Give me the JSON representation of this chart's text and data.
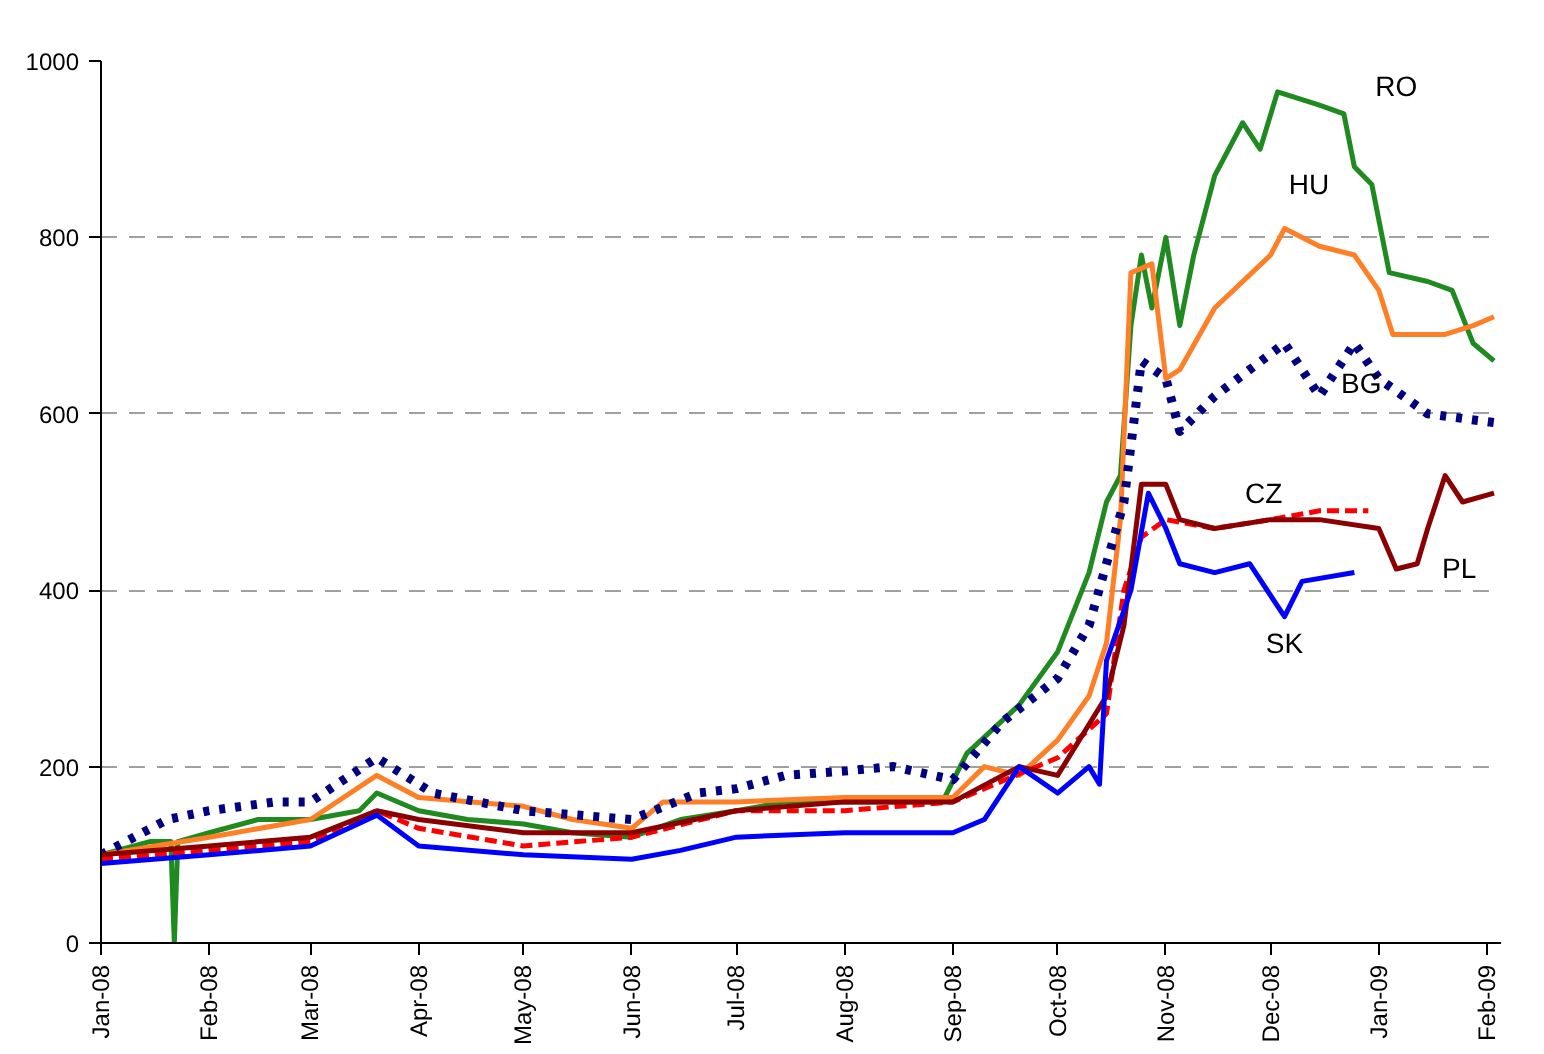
{
  "chart_data": {
    "type": "line",
    "xlim": [
      "2008-01-01",
      "2009-02-05"
    ],
    "xticks": [
      {
        "value": "2008-01-01",
        "label": "Jan-08"
      },
      {
        "value": "2008-02-01",
        "label": "Feb-08"
      },
      {
        "value": "2008-03-01",
        "label": "Mar-08"
      },
      {
        "value": "2008-04-01",
        "label": "Apr-08"
      },
      {
        "value": "2008-05-01",
        "label": "May-08"
      },
      {
        "value": "2008-06-01",
        "label": "Jun-08"
      },
      {
        "value": "2008-07-01",
        "label": "Jul-08"
      },
      {
        "value": "2008-08-01",
        "label": "Aug-08"
      },
      {
        "value": "2008-09-01",
        "label": "Sep-08"
      },
      {
        "value": "2008-10-01",
        "label": "Oct-08"
      },
      {
        "value": "2008-11-01",
        "label": "Nov-08"
      },
      {
        "value": "2008-12-01",
        "label": "Dec-08"
      },
      {
        "value": "2009-01-01",
        "label": "Jan-09"
      },
      {
        "value": "2009-02-01",
        "label": "Feb-09"
      }
    ],
    "ylim": [
      0,
      1000
    ],
    "yticks": [
      0,
      200,
      400,
      600,
      800,
      1000
    ],
    "grid": "y",
    "legend": false,
    "series": [
      {
        "name": "RO",
        "color": "#1f8a1f",
        "line_style": "solid",
        "x": [
          "2008-01-01",
          "2008-01-15",
          "2008-01-21",
          "2008-01-22",
          "2008-01-23",
          "2008-02-01",
          "2008-02-15",
          "2008-03-01",
          "2008-03-15",
          "2008-03-20",
          "2008-04-01",
          "2008-04-15",
          "2008-05-01",
          "2008-05-15",
          "2008-06-01",
          "2008-06-15",
          "2008-07-01",
          "2008-07-15",
          "2008-08-01",
          "2008-08-15",
          "2008-08-29",
          "2008-09-05",
          "2008-09-20",
          "2008-10-01",
          "2008-10-10",
          "2008-10-15",
          "2008-10-19",
          "2008-10-22",
          "2008-10-25",
          "2008-10-28",
          "2008-11-01",
          "2008-11-05",
          "2008-11-09",
          "2008-11-15",
          "2008-11-23",
          "2008-11-28",
          "2008-12-03",
          "2008-12-15",
          "2008-12-22",
          "2008-12-25",
          "2008-12-30",
          "2009-01-04",
          "2009-01-15",
          "2009-01-22",
          "2009-01-28",
          "2009-02-03"
        ],
        "values": [
          100,
          115,
          115,
          0,
          115,
          125,
          140,
          140,
          150,
          170,
          150,
          140,
          135,
          125,
          120,
          140,
          150,
          160,
          160,
          160,
          160,
          215,
          270,
          330,
          420,
          500,
          530,
          700,
          780,
          720,
          800,
          700,
          780,
          870,
          930,
          900,
          965,
          950,
          940,
          880,
          860,
          760,
          750,
          740,
          680,
          660
        ]
      },
      {
        "name": "HU",
        "color": "#ff7f27",
        "line_style": "solid",
        "x": [
          "2008-01-01",
          "2008-02-01",
          "2008-03-01",
          "2008-03-20",
          "2008-04-01",
          "2008-05-01",
          "2008-05-15",
          "2008-06-01",
          "2008-06-10",
          "2008-07-01",
          "2008-08-01",
          "2008-09-01",
          "2008-09-10",
          "2008-09-20",
          "2008-10-01",
          "2008-10-10",
          "2008-10-15",
          "2008-10-19",
          "2008-10-22",
          "2008-10-28",
          "2008-11-01",
          "2008-11-05",
          "2008-11-15",
          "2008-12-01",
          "2008-12-05",
          "2008-12-15",
          "2008-12-25",
          "2009-01-01",
          "2009-01-05",
          "2009-01-20",
          "2009-01-28",
          "2009-02-03"
        ],
        "values": [
          100,
          120,
          140,
          190,
          165,
          155,
          140,
          130,
          160,
          160,
          165,
          165,
          200,
          190,
          230,
          280,
          340,
          480,
          760,
          770,
          640,
          650,
          720,
          780,
          810,
          790,
          780,
          740,
          690,
          690,
          700,
          710
        ]
      },
      {
        "name": "BG",
        "color": "#000080",
        "line_style": "dotted",
        "x": [
          "2008-01-01",
          "2008-01-20",
          "2008-02-01",
          "2008-02-20",
          "2008-03-01",
          "2008-03-20",
          "2008-04-05",
          "2008-05-01",
          "2008-06-01",
          "2008-06-20",
          "2008-07-01",
          "2008-07-15",
          "2008-08-01",
          "2008-08-15",
          "2008-09-01",
          "2008-09-15",
          "2008-10-01",
          "2008-10-10",
          "2008-10-20",
          "2008-10-25",
          "2008-11-01",
          "2008-11-05",
          "2008-11-15",
          "2008-11-25",
          "2008-12-05",
          "2008-12-15",
          "2008-12-25",
          "2009-01-01",
          "2009-01-15",
          "2009-02-03"
        ],
        "values": [
          100,
          140,
          150,
          160,
          160,
          210,
          170,
          150,
          140,
          170,
          175,
          190,
          195,
          200,
          185,
          250,
          300,
          360,
          500,
          660,
          640,
          580,
          620,
          650,
          680,
          620,
          680,
          640,
          600,
          590
        ]
      },
      {
        "name": "CZ",
        "color": "#ff0000",
        "line_style": "dashed",
        "x": [
          "2008-01-01",
          "2008-02-01",
          "2008-03-01",
          "2008-03-20",
          "2008-04-01",
          "2008-05-01",
          "2008-06-01",
          "2008-07-01",
          "2008-08-01",
          "2008-09-01",
          "2008-10-01",
          "2008-10-15",
          "2008-10-20",
          "2008-10-25",
          "2008-11-01",
          "2008-11-15",
          "2008-12-01",
          "2008-12-15",
          "2008-12-29"
        ],
        "values": [
          95,
          105,
          115,
          150,
          130,
          110,
          120,
          150,
          150,
          160,
          210,
          260,
          400,
          460,
          480,
          470,
          480,
          490,
          490
        ]
      },
      {
        "name": "PL",
        "color": "#8b0000",
        "line_style": "solid",
        "x": [
          "2008-01-01",
          "2008-02-01",
          "2008-03-01",
          "2008-03-20",
          "2008-04-01",
          "2008-05-01",
          "2008-06-01",
          "2008-07-01",
          "2008-08-01",
          "2008-09-01",
          "2008-09-20",
          "2008-10-01",
          "2008-10-15",
          "2008-10-20",
          "2008-10-25",
          "2008-11-01",
          "2008-11-05",
          "2008-11-15",
          "2008-12-01",
          "2008-12-15",
          "2009-01-01",
          "2009-01-06",
          "2009-01-12",
          "2009-01-15",
          "2009-01-20",
          "2009-01-25",
          "2009-02-03"
        ],
        "values": [
          100,
          110,
          120,
          150,
          140,
          125,
          125,
          150,
          160,
          160,
          200,
          190,
          280,
          360,
          520,
          520,
          480,
          470,
          480,
          480,
          470,
          424,
          430,
          470,
          530,
          500,
          510
        ]
      },
      {
        "name": "SK",
        "color": "#0000ff",
        "line_style": "solid",
        "x": [
          "2008-01-01",
          "2008-02-01",
          "2008-03-01",
          "2008-03-20",
          "2008-04-01",
          "2008-05-01",
          "2008-06-01",
          "2008-06-15",
          "2008-07-01",
          "2008-08-01",
          "2008-09-01",
          "2008-09-10",
          "2008-09-20",
          "2008-10-01",
          "2008-10-10",
          "2008-10-13",
          "2008-10-15",
          "2008-10-22",
          "2008-10-27",
          "2008-11-01",
          "2008-11-05",
          "2008-11-15",
          "2008-11-25",
          "2008-12-05",
          "2008-12-10",
          "2008-12-25"
        ],
        "values": [
          90,
          100,
          110,
          145,
          110,
          100,
          95,
          105,
          120,
          125,
          125,
          140,
          200,
          170,
          200,
          180,
          320,
          400,
          510,
          470,
          430,
          420,
          430,
          370,
          410,
          420
        ]
      }
    ]
  }
}
